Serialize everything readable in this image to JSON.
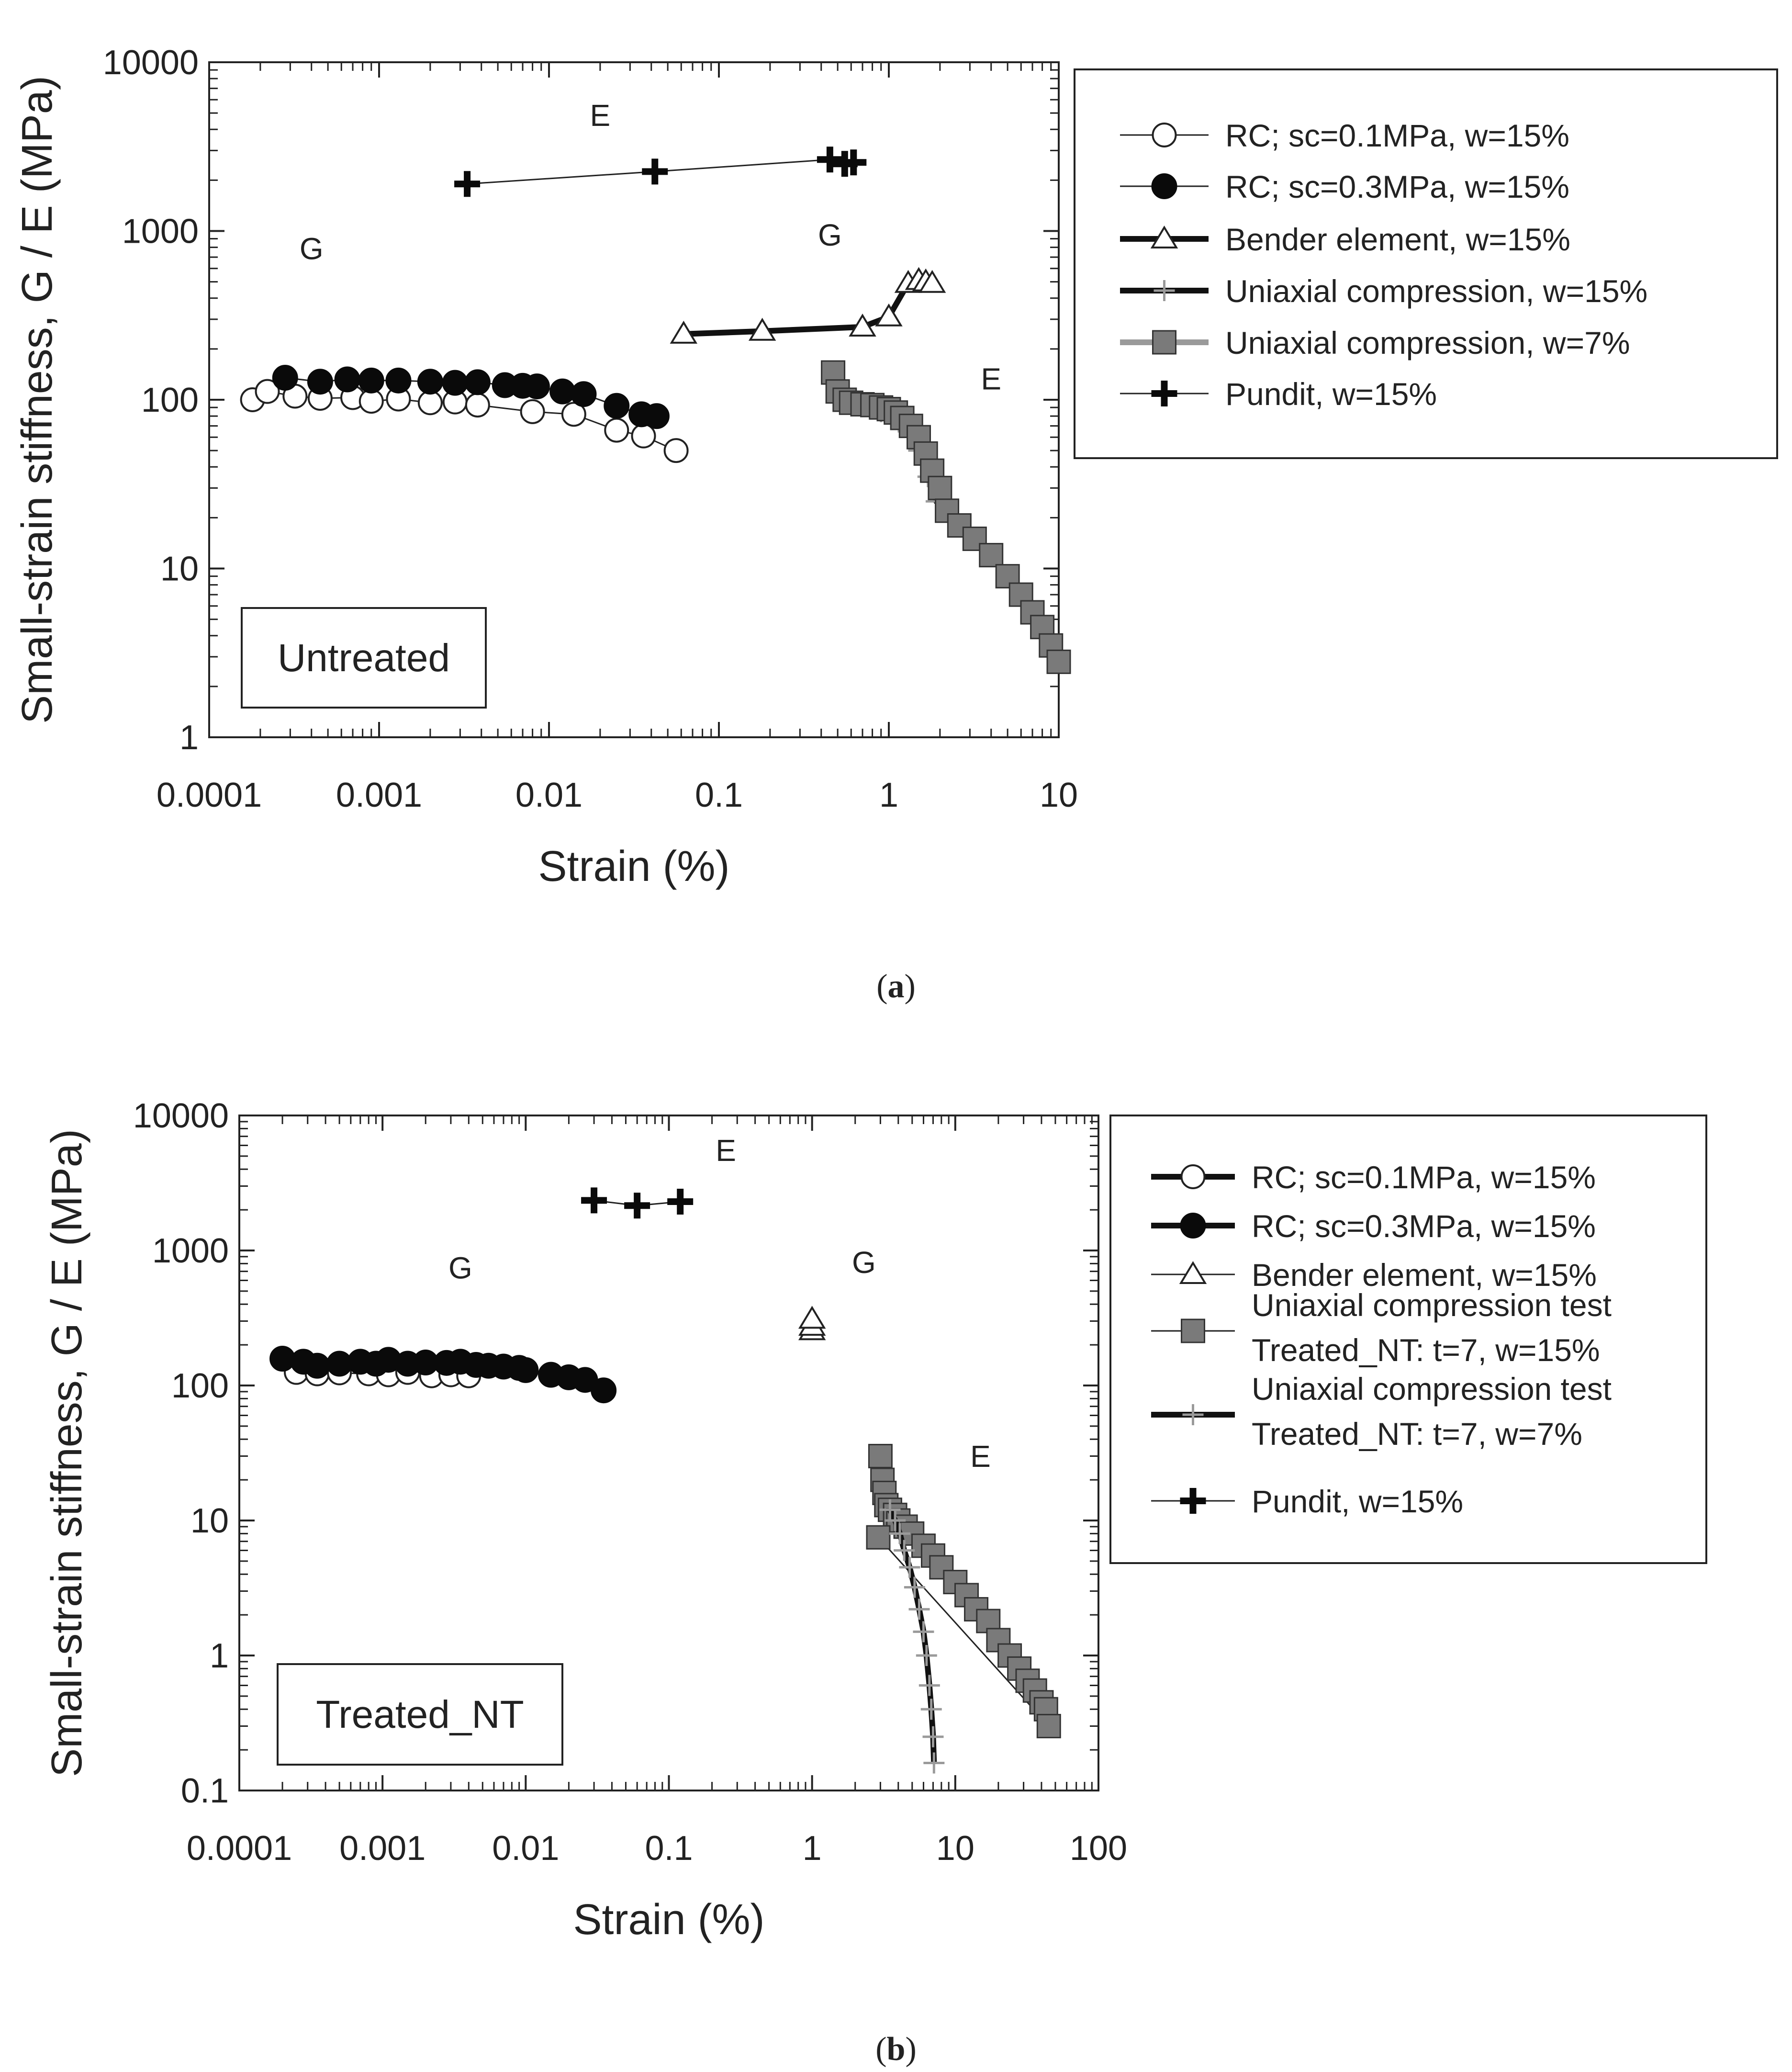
{
  "chart_data": [
    {
      "panel": "(a)",
      "type": "scatter",
      "xscale": "log",
      "yscale": "log",
      "xlim": [
        0.0001,
        10
      ],
      "ylim": [
        1,
        10000
      ],
      "xlabel": "Strain (%)",
      "ylabel": "Small-strain stiffness, G / E (MPa)",
      "xticks": [
        "0.0001",
        "0.001",
        "0.01",
        "0.1",
        "1",
        "10"
      ],
      "yticks": [
        "1",
        "10",
        "100",
        "1000",
        "10000"
      ],
      "caption_open": "(",
      "caption_letter": "a",
      "caption_close": ")",
      "box_label": "Untreated",
      "legend": [
        {
          "label": "RC; sc=0.1MPa, w=15%",
          "marker": "open-circle",
          "line": "thin-black"
        },
        {
          "label": "RC; sc=0.3MPa, w=15%",
          "marker": "filled-circle",
          "line": "thin-black"
        },
        {
          "label": "Bender element, w=15%",
          "marker": "open-triangle",
          "line": "thick-black"
        },
        {
          "label": "Uniaxial compression, w=15%",
          "marker": "thin-plus",
          "line": "thick-black"
        },
        {
          "label": "Uniaxial compression, w=7%",
          "marker": "gray-square",
          "line": "thick-gray"
        },
        {
          "label": "Pundit, w=15%",
          "marker": "bold-plus",
          "line": "thin-black"
        }
      ],
      "annotations": [
        {
          "text": "E",
          "x": 0.02,
          "y": 4200
        },
        {
          "text": "G",
          "x": 0.0004,
          "y": 680
        },
        {
          "text": "G",
          "x": 0.45,
          "y": 820
        },
        {
          "text": "E",
          "x": 4.0,
          "y": 115
        }
      ],
      "series": [
        {
          "name": "RC; sc=0.1MPa, w=15%",
          "marker": "open-circle",
          "line": "thin-black",
          "x": [
            0.00018,
            0.00022,
            0.00032,
            0.00045,
            0.0007,
            0.0009,
            0.0013,
            0.002,
            0.0028,
            0.0038,
            0.008,
            0.014,
            0.025,
            0.036,
            0.056
          ],
          "y": [
            100,
            112,
            105,
            102,
            103,
            98,
            101,
            96,
            97,
            93,
            85,
            82,
            66,
            61,
            50
          ]
        },
        {
          "name": "RC; sc=0.3MPa, w=15%",
          "marker": "filled-circle",
          "line": "thin-black",
          "x": [
            0.00028,
            0.00045,
            0.00065,
            0.0009,
            0.0013,
            0.002,
            0.0028,
            0.0038,
            0.0055,
            0.007,
            0.0085,
            0.012,
            0.016,
            0.025,
            0.035,
            0.043
          ],
          "y": [
            135,
            128,
            132,
            130,
            130,
            128,
            126,
            127,
            122,
            121,
            120,
            112,
            108,
            92,
            82,
            80
          ]
        },
        {
          "name": "Bender element, w=15%",
          "marker": "open-triangle",
          "line": "thick-black",
          "x": [
            0.062,
            0.18,
            0.7,
            1.0,
            1.3,
            1.5,
            1.65,
            1.8
          ],
          "y": [
            245,
            255,
            270,
            310,
            490,
            510,
            500,
            490
          ]
        },
        {
          "name": "Uniaxial compression, w=15%",
          "marker": "thin-plus",
          "line": "thick-black",
          "x": [
            0.55,
            0.7,
            0.9,
            1.1,
            1.3,
            1.5,
            1.7,
            1.9,
            2.2
          ],
          "y": [
            96,
            92,
            85,
            78,
            65,
            50,
            35,
            25,
            22
          ]
        },
        {
          "name": "Uniaxial compression, w=7%",
          "marker": "gray-square",
          "line": "thick-gray",
          "x": [
            0.47,
            0.5,
            0.55,
            0.6,
            0.7,
            0.8,
            0.9,
            1.0,
            1.1,
            1.2,
            1.35,
            1.5,
            1.65,
            1.8,
            2.0,
            2.2,
            2.6,
            3.2,
            4.0,
            5.0,
            6.0,
            7.0,
            8.0,
            9.0,
            10.0
          ],
          "y": [
            145,
            112,
            100,
            96,
            94,
            93,
            90,
            88,
            84,
            78,
            70,
            60,
            48,
            38,
            30,
            22,
            18,
            15,
            12,
            9,
            7,
            5.5,
            4.5,
            3.5,
            2.8
          ]
        },
        {
          "name": "Pundit, w=15%",
          "marker": "bold-plus",
          "line": "thin-black",
          "x": [
            0.0033,
            0.042,
            0.45,
            0.55,
            0.62
          ],
          "y": [
            1900,
            2250,
            2650,
            2500,
            2550
          ]
        }
      ]
    },
    {
      "panel": "(b)",
      "type": "scatter",
      "xscale": "log",
      "yscale": "log",
      "xlim": [
        0.0001,
        100
      ],
      "ylim": [
        0.1,
        10000
      ],
      "xlabel": "Strain (%)",
      "ylabel": "Small-strain stiffness, G / E (MPa)",
      "xticks": [
        "0.0001",
        "0.001",
        "0.01",
        "0.1",
        "1",
        "10",
        "100"
      ],
      "yticks": [
        "0.1",
        "1",
        "10",
        "100",
        "1000",
        "10000"
      ],
      "caption_open": "(",
      "caption_letter": "b",
      "caption_close": ")",
      "box_label": "Treated_NT",
      "legend": [
        {
          "label": "RC; sc=0.1MPa, w=15%",
          "marker": "open-circle",
          "line": "thick-black"
        },
        {
          "label": "RC; sc=0.3MPa, w=15%",
          "marker": "filled-circle",
          "line": "thick-black"
        },
        {
          "label": "Bender element, w=15%",
          "marker": "open-triangle",
          "line": "thin-black"
        },
        {
          "label": "Uniaxial compression test",
          "label2": "Treated_NT: t=7, w=15%",
          "marker": "gray-square",
          "line": "thin-black"
        },
        {
          "label": "Uniaxial compression test",
          "label2": "Treated_NT: t=7, w=7%",
          "marker": "thin-plus",
          "line": "thick-black"
        },
        {
          "label": "Pundit, w=15%",
          "marker": "bold-plus",
          "line": "thin-black"
        }
      ],
      "annotations": [
        {
          "text": "E",
          "x": 0.25,
          "y": 4600
        },
        {
          "text": "G",
          "x": 0.0035,
          "y": 620
        },
        {
          "text": "G",
          "x": 2.3,
          "y": 680
        },
        {
          "text": "E",
          "x": 15,
          "y": 25
        }
      ],
      "series": [
        {
          "name": "RC; sc=0.1MPa, w=15%",
          "marker": "open-circle",
          "line": "thin-black",
          "x": [
            0.00025,
            0.00035,
            0.0005,
            0.0008,
            0.0011,
            0.0015,
            0.0022,
            0.003,
            0.004
          ],
          "y": [
            125,
            122,
            124,
            122,
            120,
            125,
            118,
            120,
            118
          ]
        },
        {
          "name": "RC; sc=0.3MPa, w=15%",
          "marker": "filled-circle",
          "line": "thin-black",
          "x": [
            0.0002,
            0.00028,
            0.00035,
            0.0005,
            0.0007,
            0.0009,
            0.0011,
            0.0015,
            0.002,
            0.0028,
            0.0035,
            0.0045,
            0.0055,
            0.007,
            0.009,
            0.01,
            0.015,
            0.02,
            0.026,
            0.035
          ],
          "y": [
            158,
            150,
            140,
            145,
            150,
            145,
            155,
            145,
            148,
            147,
            150,
            142,
            140,
            138,
            135,
            130,
            120,
            115,
            110,
            92
          ]
        },
        {
          "name": "Bender element, w=15%",
          "marker": "open-triangle",
          "line": "thin-black",
          "x": [
            1.0,
            1.0,
            1.0
          ],
          "y": [
            255,
            275,
            310
          ]
        },
        {
          "name": "Uniaxial compression test Treated_NT: t=7, w=15%",
          "marker": "gray-square",
          "line": "thin-black",
          "x": [
            3.0,
            3.1,
            3.2,
            3.3,
            3.5,
            3.8,
            4.0,
            4.5,
            5.0,
            6.0,
            7.0,
            8.0,
            10.0,
            12.0,
            14.0,
            17.0,
            20.0,
            24.0,
            28.0,
            32.0,
            36.0,
            40.0,
            43.0,
            45.0,
            2.9
          ],
          "y": [
            30,
            20,
            16,
            13,
            12,
            11,
            10,
            9,
            8,
            6.5,
            5.5,
            4.5,
            3.5,
            2.8,
            2.2,
            1.8,
            1.3,
            1.0,
            0.8,
            0.65,
            0.55,
            0.45,
            0.4,
            0.3,
            7.5
          ]
        },
        {
          "name": "Uniaxial compression test Treated_NT: t=7, w=7%",
          "marker": "thin-plus",
          "line": "thick-black",
          "x": [
            3.5,
            3.8,
            4.1,
            4.4,
            4.8,
            5.2,
            5.6,
            6.0,
            6.3,
            6.6,
            6.8,
            7.0,
            7.1
          ],
          "y": [
            12,
            10,
            8,
            6,
            4.5,
            3.2,
            2.2,
            1.5,
            1.0,
            0.6,
            0.4,
            0.25,
            0.16
          ]
        },
        {
          "name": "Pundit, w=15%",
          "marker": "bold-plus",
          "line": "thin-black",
          "x": [
            0.03,
            0.06,
            0.12
          ],
          "y": [
            2350,
            2150,
            2300
          ]
        }
      ]
    }
  ]
}
